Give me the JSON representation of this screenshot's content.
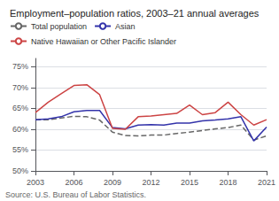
{
  "chart_data": {
    "type": "line",
    "title": "Employment–population ratios, 2003–21 annual averages",
    "annotations": [
      "Source: U.S. Bureau of Labor Statistics."
    ],
    "x": [
      2003,
      2004,
      2005,
      2006,
      2007,
      2008,
      2009,
      2010,
      2011,
      2012,
      2013,
      2014,
      2015,
      2016,
      2017,
      2018,
      2019,
      2020,
      2021
    ],
    "series": [
      {
        "name": "Total population",
        "color": "#666666",
        "line_style": "dashed",
        "values": [
          62.3,
          62.3,
          62.7,
          63.1,
          63.0,
          62.2,
          59.3,
          58.5,
          58.4,
          58.6,
          58.6,
          59.0,
          59.3,
          59.7,
          60.1,
          60.4,
          61.0,
          57.4,
          58.4
        ]
      },
      {
        "name": "Asian",
        "color": "#3333aa",
        "line_style": "solid",
        "values": [
          62.3,
          62.5,
          63.0,
          64.2,
          64.5,
          64.5,
          60.4,
          60.1,
          61.0,
          61.1,
          61.0,
          61.5,
          61.5,
          62.0,
          62.2,
          62.5,
          63.0,
          57.2,
          60.5
        ]
      },
      {
        "name": "Native Hawaiian or Other Pacific Islander",
        "color": "#cc4444",
        "line_style": "solid",
        "values": [
          64.0,
          66.5,
          68.5,
          70.5,
          70.7,
          68.3,
          60.2,
          60.0,
          63.0,
          63.2,
          63.5,
          63.8,
          65.8,
          63.5,
          64.0,
          66.5,
          63.5,
          61.0,
          62.3
        ]
      }
    ],
    "xlim": [
      2003,
      2021
    ],
    "xticks": [
      2003,
      2006,
      2009,
      2012,
      2015,
      2018,
      2021
    ],
    "ylim": [
      50,
      77
    ],
    "yticks": [
      {
        "value": 50,
        "label": "50%"
      },
      {
        "value": 55,
        "label": "55%"
      },
      {
        "value": 60,
        "label": "60%"
      },
      {
        "value": 65,
        "label": "65%"
      },
      {
        "value": 70,
        "label": "70%"
      },
      {
        "value": 75,
        "label": "75%"
      }
    ],
    "grid": true,
    "legend": "upper left"
  }
}
